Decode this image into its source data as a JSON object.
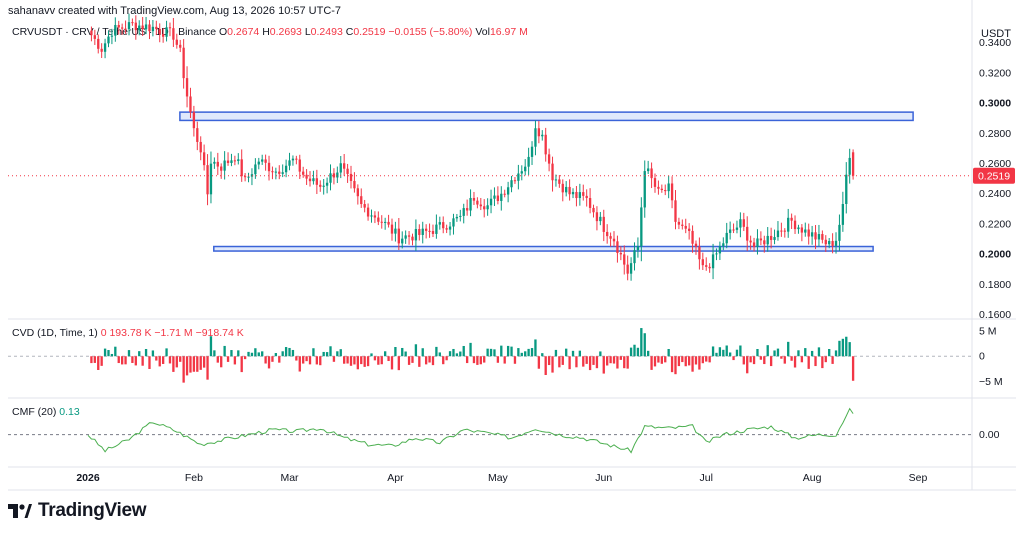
{
  "header": {
    "created_line": "sahanavv created with TradingView.com, Aug 13, 2026 10:57 UTC-7"
  },
  "legend": {
    "symbol": "CRVUSDT · CRV / TetherUS · 1D · Binance",
    "o_label": "O",
    "o_value": "0.2674",
    "h_label": "H",
    "h_value": "0.2693",
    "l_label": "L",
    "l_value": "0.2493",
    "c_label": "C",
    "c_value": "0.2519",
    "change": "−0.0155 (−5.80%)",
    "vol_label": "Vol",
    "vol_value": "16.97 M"
  },
  "cvd_legend": {
    "name": "CVD (1D, Time, 1)",
    "v1": "0",
    "v2": "193.78 K",
    "v3": "−1.71 M",
    "v4": "−918.74 K"
  },
  "cmf_legend": {
    "name": "CMF (20)",
    "value": "0.13"
  },
  "price_axis": {
    "unit": "USDT",
    "current_price": "0.2519"
  },
  "brand": {
    "name": "TradingView"
  },
  "colors": {
    "up": "#089981",
    "down": "#f23645",
    "box": "#3a63d8",
    "box_fill": "#dbe5fb",
    "cmf_line": "#4caf50",
    "grid": "#e0e3eb",
    "text": "#131722"
  },
  "chart_data": [
    {
      "type": "candlestick",
      "title": "CRVUSDT · CRV / TetherUS · 1D · Binance",
      "y_unit": "USDT",
      "y_ticks": [
        "0.3400",
        "0.3200",
        "0.3000",
        "0.2800",
        "0.2600",
        "0.2400",
        "0.2200",
        "0.2000",
        "0.1800",
        "0.1600"
      ],
      "y_ticks_bold": [
        "0.3000",
        "0.2000"
      ],
      "ylim": [
        0.157,
        0.355
      ],
      "x_ticks": [
        "2026",
        "Feb",
        "Mar",
        "Apr",
        "May",
        "Jun",
        "Jul",
        "Aug",
        "Sep"
      ],
      "x_ticks_bold": [
        "2026"
      ],
      "current_price": 0.2519,
      "last_ohlc": {
        "open": 0.2674,
        "high": 0.2693,
        "low": 0.2493,
        "close": 0.2519
      },
      "resistance_zone": [
        0.2885,
        0.294
      ],
      "support_zone": [
        0.202,
        0.205
      ],
      "anchors": [
        {
          "date": "Jan 02",
          "price": 0.345
        },
        {
          "date": "Jan 05",
          "price": 0.336
        },
        {
          "date": "Jan 08",
          "price": 0.348
        },
        {
          "date": "Jan 14",
          "price": 0.352
        },
        {
          "date": "Jan 20",
          "price": 0.35
        },
        {
          "date": "Jan 26",
          "price": 0.345
        },
        {
          "date": "Jan 28",
          "price": 0.333
        },
        {
          "date": "Jan 30",
          "price": 0.305
        },
        {
          "date": "Feb 01",
          "price": 0.282
        },
        {
          "date": "Feb 03",
          "price": 0.27
        },
        {
          "date": "Feb 05",
          "price": 0.24
        },
        {
          "date": "Feb 06",
          "price": 0.262
        },
        {
          "date": "Feb 09",
          "price": 0.258
        },
        {
          "date": "Feb 13",
          "price": 0.265
        },
        {
          "date": "Feb 16",
          "price": 0.248
        },
        {
          "date": "Feb 20",
          "price": 0.262
        },
        {
          "date": "Feb 25",
          "price": 0.255
        },
        {
          "date": "Mar 02",
          "price": 0.262
        },
        {
          "date": "Mar 06",
          "price": 0.25
        },
        {
          "date": "Mar 10",
          "price": 0.245
        },
        {
          "date": "Mar 16",
          "price": 0.258
        },
        {
          "date": "Mar 22",
          "price": 0.232
        },
        {
          "date": "Mar 28",
          "price": 0.222
        },
        {
          "date": "Apr 02",
          "price": 0.211
        },
        {
          "date": "Apr 08",
          "price": 0.213
        },
        {
          "date": "Apr 14",
          "price": 0.218
        },
        {
          "date": "Apr 20",
          "price": 0.224
        },
        {
          "date": "Apr 24",
          "price": 0.238
        },
        {
          "date": "Apr 28",
          "price": 0.232
        },
        {
          "date": "May 02",
          "price": 0.24
        },
        {
          "date": "May 06",
          "price": 0.252
        },
        {
          "date": "May 10",
          "price": 0.262
        },
        {
          "date": "May 12",
          "price": 0.286
        },
        {
          "date": "May 14",
          "price": 0.278
        },
        {
          "date": "May 17",
          "price": 0.252
        },
        {
          "date": "May 22",
          "price": 0.24
        },
        {
          "date": "May 27",
          "price": 0.236
        },
        {
          "date": "Jun 01",
          "price": 0.218
        },
        {
          "date": "Jun 04",
          "price": 0.21
        },
        {
          "date": "Jun 08",
          "price": 0.188
        },
        {
          "date": "Jun 11",
          "price": 0.205
        },
        {
          "date": "Jun 13",
          "price": 0.258
        },
        {
          "date": "Jun 17",
          "price": 0.24
        },
        {
          "date": "Jun 20",
          "price": 0.243
        },
        {
          "date": "Jun 22",
          "price": 0.222
        },
        {
          "date": "Jun 26",
          "price": 0.212
        },
        {
          "date": "Jun 30",
          "price": 0.19
        },
        {
          "date": "Jul 03",
          "price": 0.196
        },
        {
          "date": "Jul 07",
          "price": 0.212
        },
        {
          "date": "Jul 11",
          "price": 0.22
        },
        {
          "date": "Jul 15",
          "price": 0.205
        },
        {
          "date": "Jul 20",
          "price": 0.212
        },
        {
          "date": "Jul 26",
          "price": 0.222
        },
        {
          "date": "Jul 30",
          "price": 0.215
        },
        {
          "date": "Aug 03",
          "price": 0.21
        },
        {
          "date": "Aug 06",
          "price": 0.206
        },
        {
          "date": "Aug 08",
          "price": 0.21
        },
        {
          "date": "Aug 10",
          "price": 0.23
        },
        {
          "date": "Aug 11",
          "price": 0.252
        },
        {
          "date": "Aug 12",
          "price": 0.267
        },
        {
          "date": "Aug 13",
          "price": 0.2519
        }
      ]
    },
    {
      "type": "bar",
      "title": "CVD (1D, Time, 1)",
      "y_ticks": [
        "5 M",
        "0",
        "−5 M"
      ],
      "ylim": [
        -8.3,
        7.2
      ],
      "unit": "M",
      "x_ticks": [
        "2026",
        "Feb",
        "Mar",
        "Apr",
        "May",
        "Jun",
        "Jul",
        "Aug",
        "Sep"
      ]
    },
    {
      "type": "line",
      "title": "CMF (20)",
      "last_value": 0.13,
      "y_ticks": [
        "0.00"
      ],
      "ylim": [
        -0.2,
        0.22
      ],
      "anchors": [
        {
          "date": "Jan 01",
          "value": 0.0
        },
        {
          "date": "Jan 06",
          "value": -0.1
        },
        {
          "date": "Jan 13",
          "value": -0.03
        },
        {
          "date": "Jan 20",
          "value": 0.08
        },
        {
          "date": "Jan 27",
          "value": 0.02
        },
        {
          "date": "Feb 03",
          "value": -0.06
        },
        {
          "date": "Feb 10",
          "value": -0.03
        },
        {
          "date": "Feb 17",
          "value": 0.0
        },
        {
          "date": "Feb 24",
          "value": 0.03
        },
        {
          "date": "Mar 03",
          "value": 0.02
        },
        {
          "date": "Mar 10",
          "value": 0.04
        },
        {
          "date": "Mar 17",
          "value": -0.02
        },
        {
          "date": "Mar 24",
          "value": -0.06
        },
        {
          "date": "Mar 31",
          "value": -0.07
        },
        {
          "date": "Apr 07",
          "value": -0.02
        },
        {
          "date": "Apr 14",
          "value": -0.05
        },
        {
          "date": "Apr 21",
          "value": 0.03
        },
        {
          "date": "Apr 28",
          "value": 0.01
        },
        {
          "date": "May 05",
          "value": -0.02
        },
        {
          "date": "May 12",
          "value": 0.04
        },
        {
          "date": "May 19",
          "value": 0.0
        },
        {
          "date": "May 26",
          "value": -0.02
        },
        {
          "date": "Jun 02",
          "value": -0.06
        },
        {
          "date": "Jun 09",
          "value": -0.1
        },
        {
          "date": "Jun 13",
          "value": 0.05
        },
        {
          "date": "Jun 20",
          "value": 0.04
        },
        {
          "date": "Jun 27",
          "value": 0.05
        },
        {
          "date": "Jul 01",
          "value": -0.05
        },
        {
          "date": "Jul 06",
          "value": 0.0
        },
        {
          "date": "Jul 13",
          "value": 0.03
        },
        {
          "date": "Jul 20",
          "value": 0.05
        },
        {
          "date": "Jul 27",
          "value": -0.02
        },
        {
          "date": "Aug 03",
          "value": 0.0
        },
        {
          "date": "Aug 08",
          "value": 0.0
        },
        {
          "date": "Aug 10",
          "value": 0.08
        },
        {
          "date": "Aug 12",
          "value": 0.15
        },
        {
          "date": "Aug 13",
          "value": 0.13
        }
      ]
    }
  ]
}
